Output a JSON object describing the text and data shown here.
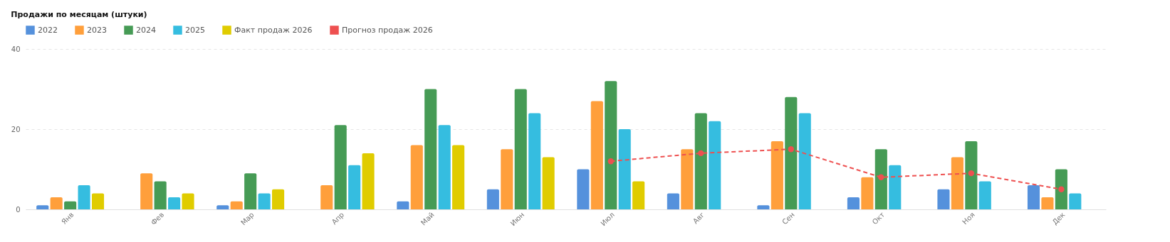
{
  "chart_data": {
    "type": "bar",
    "title": "Продажи по месяцам (штуки)",
    "categories": [
      "Янв",
      "Фев",
      "Мар",
      "Апр",
      "Май",
      "Июн",
      "Июл",
      "Авг",
      "Сен",
      "Окт",
      "Ноя",
      "Дек"
    ],
    "series": [
      {
        "name": "2022",
        "color": "#5591dc",
        "values": [
          1,
          null,
          1,
          null,
          2,
          5,
          10,
          4,
          1,
          3,
          5,
          6
        ]
      },
      {
        "name": "2023",
        "color": "#ff9f3b",
        "values": [
          3,
          9,
          2,
          6,
          16,
          15,
          27,
          15,
          17,
          8,
          13,
          3
        ]
      },
      {
        "name": "2024",
        "color": "#469b55",
        "values": [
          2,
          7,
          9,
          21,
          30,
          30,
          32,
          24,
          28,
          15,
          17,
          10
        ]
      },
      {
        "name": "2025",
        "color": "#35bde0",
        "values": [
          6,
          3,
          4,
          11,
          21,
          24,
          20,
          22,
          24,
          11,
          7,
          4
        ]
      },
      {
        "name": "Факт продаж 2026",
        "color": "#e0cc00",
        "values": [
          4,
          4,
          5,
          14,
          16,
          13,
          7,
          null,
          null,
          null,
          null,
          null
        ]
      },
      {
        "name": "Прогноз продаж 2026",
        "color": "#ee5050",
        "type": "line",
        "marker": "circle",
        "line_style": "dashed",
        "values": [
          null,
          null,
          null,
          null,
          null,
          null,
          12,
          14,
          15,
          8,
          9,
          5
        ]
      }
    ],
    "ylim": [
      0,
      40
    ],
    "yticks": [
      0,
      20,
      40
    ],
    "grid": "y",
    "legend": "top"
  }
}
